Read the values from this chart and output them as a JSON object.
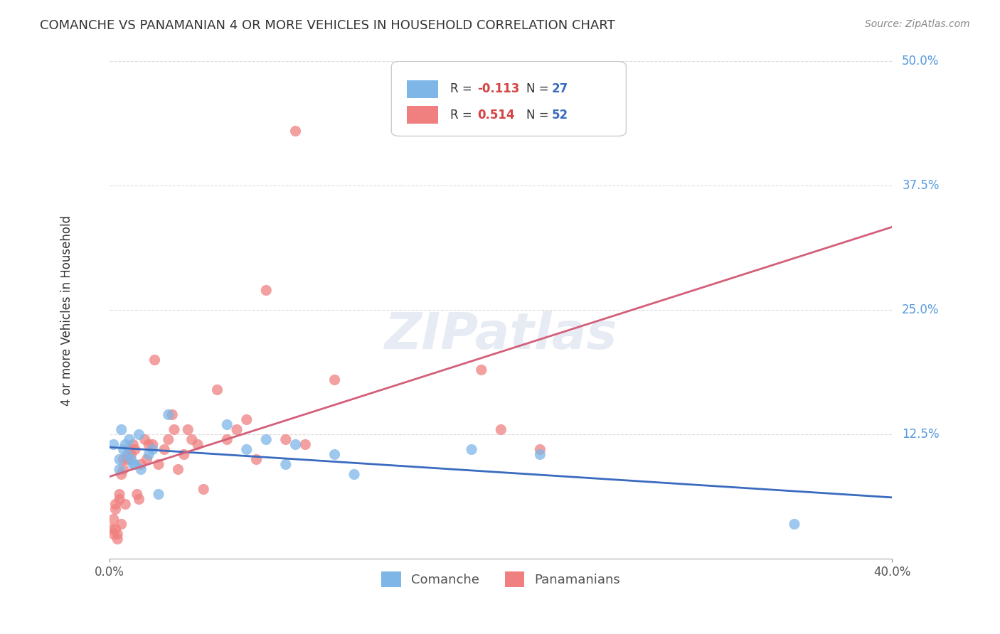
{
  "title": "COMANCHE VS PANAMANIAN 4 OR MORE VEHICLES IN HOUSEHOLD CORRELATION CHART",
  "source": "Source: ZipAtlas.com",
  "ylabel": "4 or more Vehicles in Household",
  "ytick_values": [
    0.0,
    0.125,
    0.25,
    0.375,
    0.5
  ],
  "ytick_labels": [
    "",
    "12.5%",
    "25.0%",
    "37.5%",
    "50.0%"
  ],
  "xlim": [
    0.0,
    0.4
  ],
  "ylim": [
    0.0,
    0.5
  ],
  "background_color": "#ffffff",
  "grid_color": "#dddddd",
  "comanche_R": -0.113,
  "comanche_N": 27,
  "panamanian_R": 0.514,
  "panamanian_N": 52,
  "comanche_color": "#7eb6e8",
  "panamanian_color": "#f08080",
  "comanche_line_color": "#3a6bbf",
  "panamanian_line_color": "#d45f7a",
  "dashed_line_color": "#c09090",
  "comanche_x": [
    0.002,
    0.005,
    0.005,
    0.006,
    0.007,
    0.008,
    0.009,
    0.01,
    0.011,
    0.012,
    0.013,
    0.015,
    0.016,
    0.02,
    0.022,
    0.025,
    0.03,
    0.06,
    0.07,
    0.08,
    0.09,
    0.095,
    0.115,
    0.125,
    0.185,
    0.22,
    0.35
  ],
  "comanche_y": [
    0.115,
    0.1,
    0.09,
    0.13,
    0.11,
    0.115,
    0.105,
    0.12,
    0.1,
    0.095,
    0.095,
    0.125,
    0.09,
    0.105,
    0.11,
    0.065,
    0.145,
    0.135,
    0.11,
    0.12,
    0.095,
    0.115,
    0.105,
    0.085,
    0.11,
    0.105,
    0.035
  ],
  "panamanian_x": [
    0.001,
    0.002,
    0.002,
    0.003,
    0.003,
    0.003,
    0.004,
    0.004,
    0.005,
    0.005,
    0.006,
    0.006,
    0.007,
    0.007,
    0.008,
    0.009,
    0.01,
    0.011,
    0.012,
    0.013,
    0.014,
    0.015,
    0.016,
    0.018,
    0.019,
    0.02,
    0.022,
    0.023,
    0.025,
    0.028,
    0.03,
    0.032,
    0.033,
    0.035,
    0.038,
    0.04,
    0.042,
    0.045,
    0.048,
    0.055,
    0.06,
    0.065,
    0.07,
    0.075,
    0.08,
    0.09,
    0.095,
    0.1,
    0.115,
    0.19,
    0.2,
    0.22
  ],
  "panamanian_y": [
    0.03,
    0.025,
    0.04,
    0.03,
    0.05,
    0.055,
    0.02,
    0.025,
    0.06,
    0.065,
    0.035,
    0.085,
    0.09,
    0.1,
    0.055,
    0.1,
    0.11,
    0.105,
    0.115,
    0.11,
    0.065,
    0.06,
    0.095,
    0.12,
    0.1,
    0.115,
    0.115,
    0.2,
    0.095,
    0.11,
    0.12,
    0.145,
    0.13,
    0.09,
    0.105,
    0.13,
    0.12,
    0.115,
    0.07,
    0.17,
    0.12,
    0.13,
    0.14,
    0.1,
    0.27,
    0.12,
    0.43,
    0.115,
    0.18,
    0.19,
    0.13,
    0.11
  ]
}
